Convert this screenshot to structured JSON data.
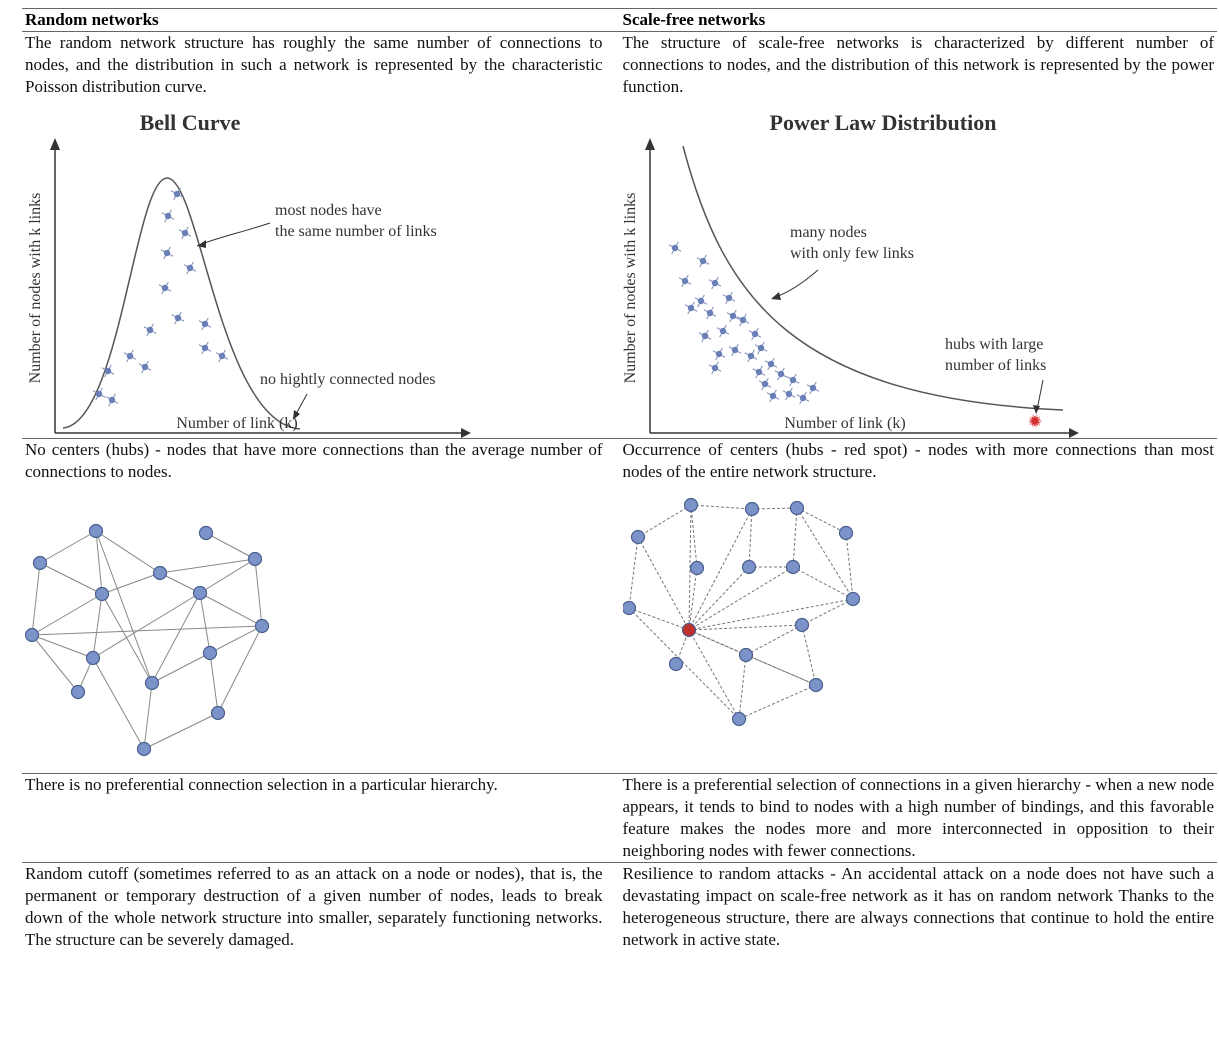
{
  "table": {
    "header": [
      "Random networks",
      "Scale-free networks"
    ],
    "rows": [
      [
        "The random network structure has roughly the same number of connections to nodes, and the distribution in such a network is represented by the characteristic Poisson distribution curve.",
        "The structure of scale-free networks is characterized by different number of connections to nodes, and the distribution of this network is represented by the power function."
      ],
      [
        "No centers (hubs) - nodes that have more connections than the average number of connections to nodes.",
        "Occurrence of centers (hubs - red spot) - nodes with more connections than most nodes of the entire network structure."
      ],
      [
        "There is no preferential connection selection in a particular hierarchy.",
        "There is a preferential selection of connections in a given hierarchy - when a new node appears, it tends to bind to nodes with a high number of bindings, and this favorable feature makes the nodes more and more interconnected in opposition to their neighboring nodes with fewer connections."
      ],
      [
        "Random cutoff (sometimes referred to as an attack on a node or nodes), that is, the permanent or temporary destruction of a given number of nodes, leads to break down of the whole network structure into smaller, separately functioning networks. The structure can be severely damaged.",
        "Resilience to random attacks - An accidental attack on a node does not have such a devastating impact on scale-free network as it has on random network Thanks to the heterogeneous structure, there are always connections that continue to hold the entire network in active state."
      ]
    ]
  },
  "figures": {
    "bell_curve": {
      "title": "Bell Curve",
      "y_label": "Number of nodes with k links",
      "x_label": "Number of link (k)",
      "annotations": [
        [
          "most nodes have",
          "the same number of links"
        ],
        [
          "no hightly connected nodes"
        ]
      ]
    },
    "power_law": {
      "title": "Power Law Distribution",
      "y_label": "Number of nodes with k links",
      "x_label": "Number of link (k)",
      "annotations": [
        [
          "many nodes",
          "with only few links"
        ],
        [
          "hubs with large",
          "number of links"
        ]
      ]
    }
  }
}
